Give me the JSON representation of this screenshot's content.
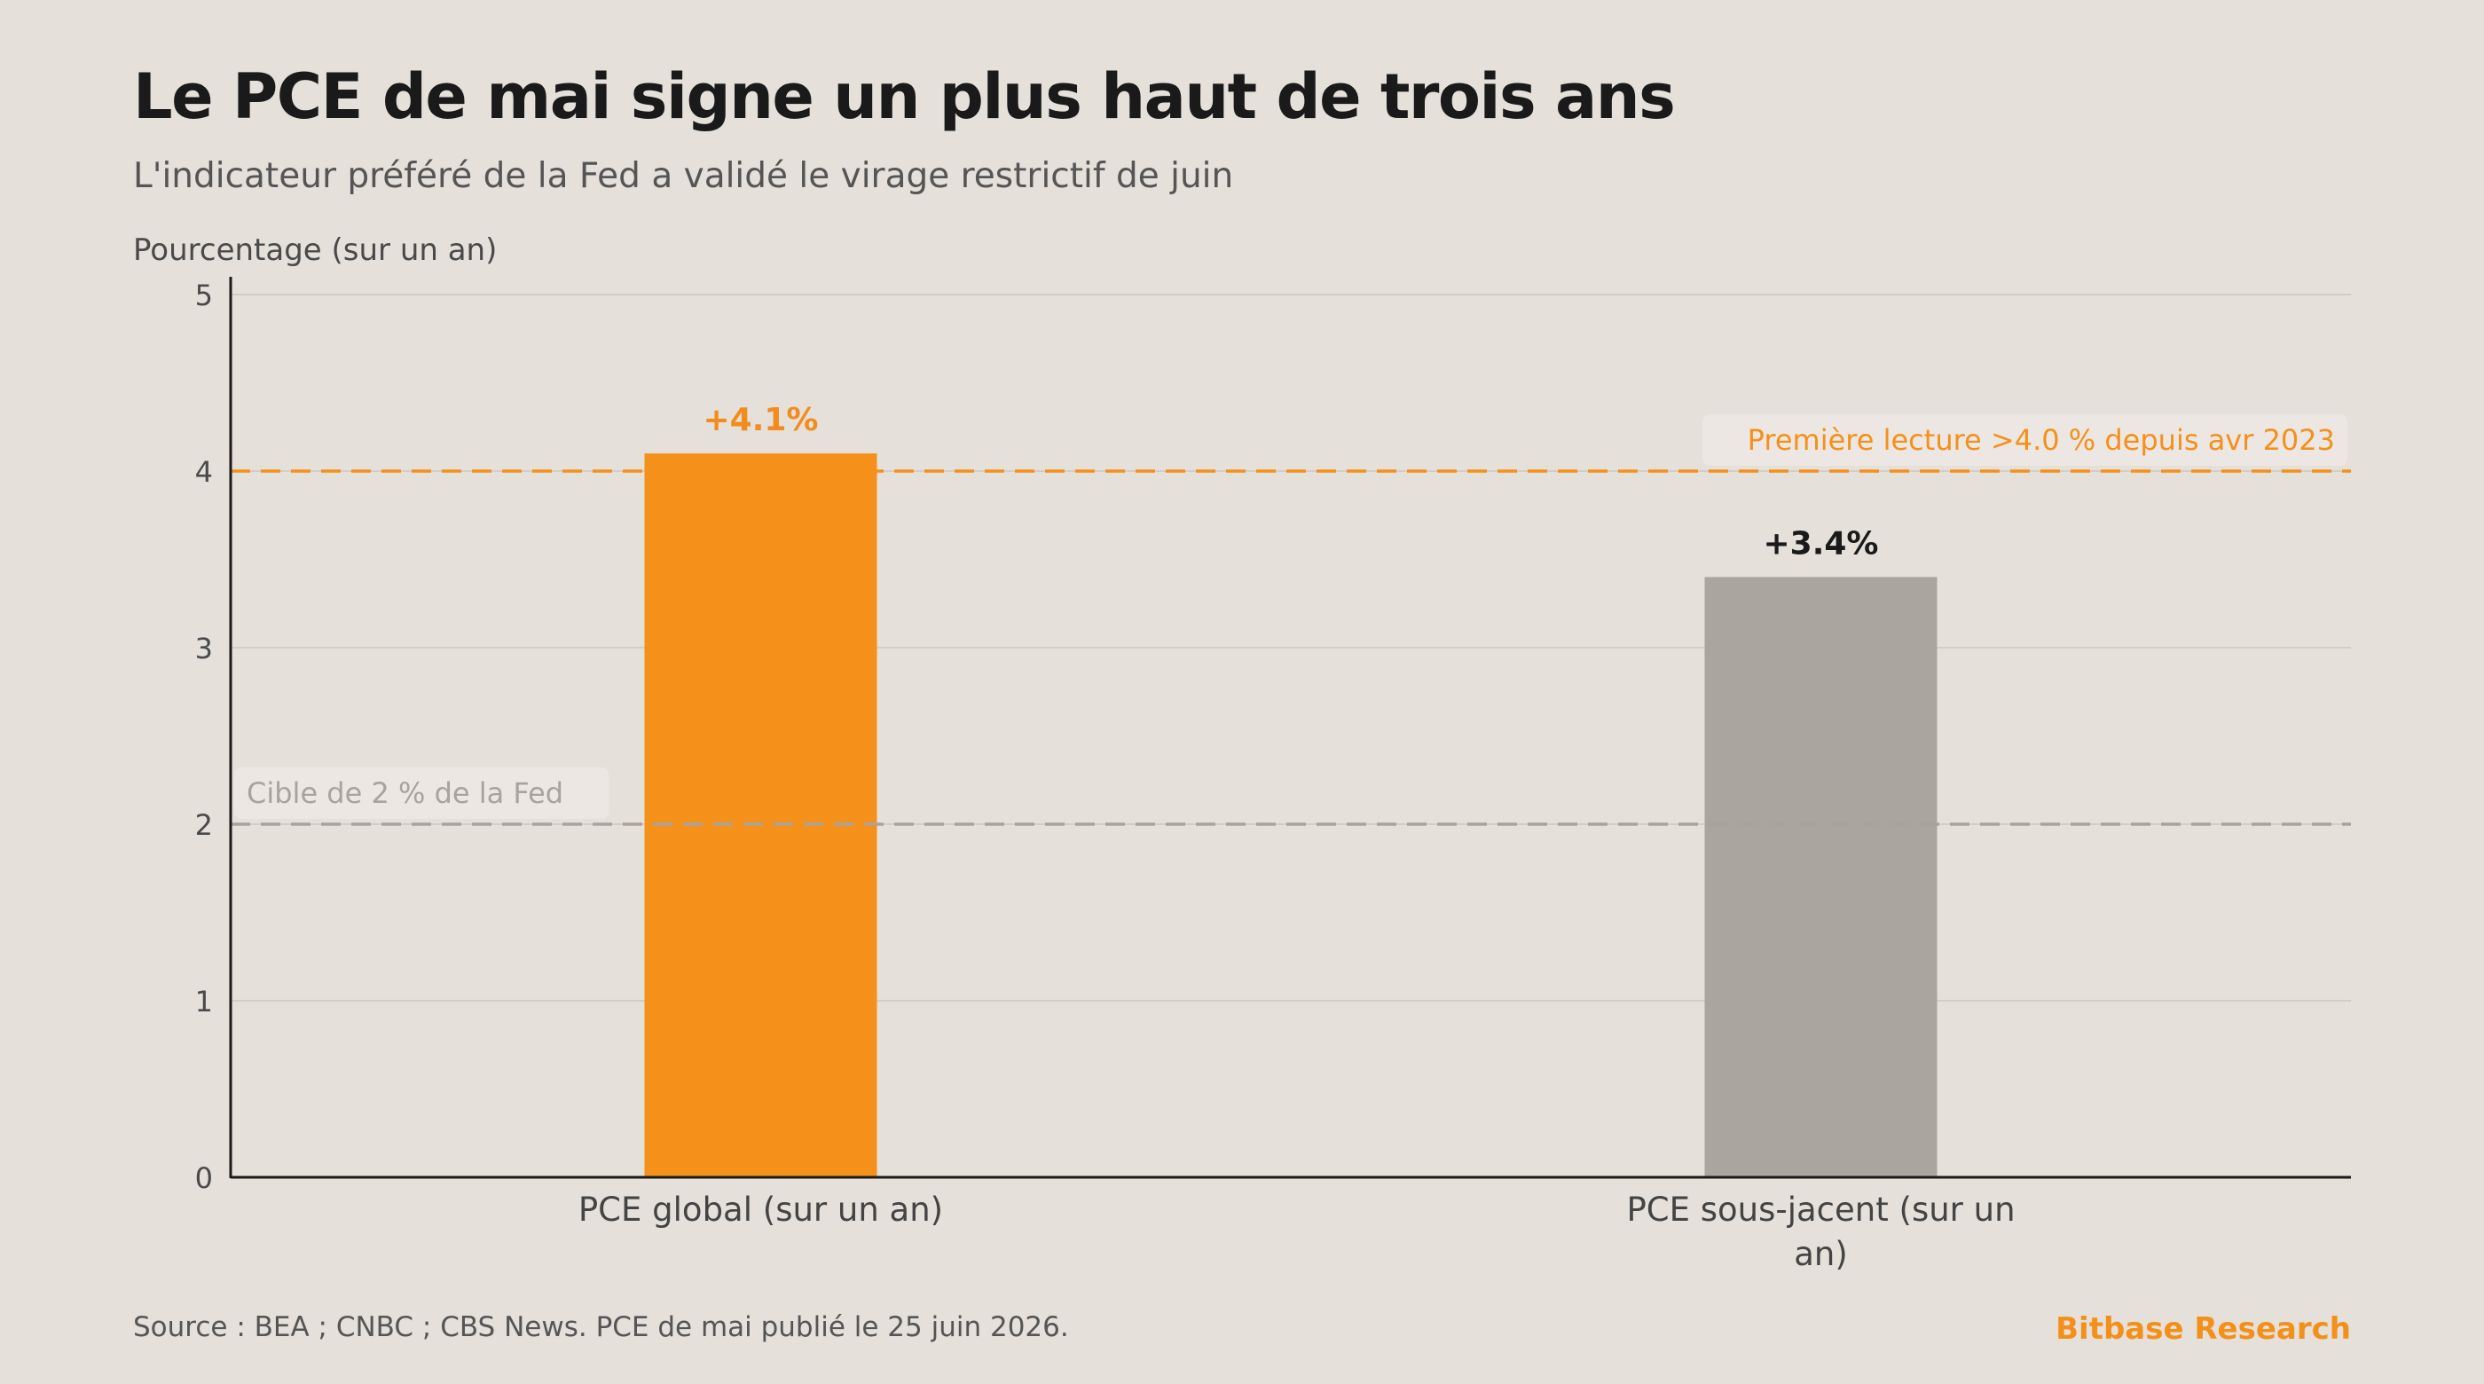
{
  "header": {
    "title": "Le PCE de mai signe un plus haut de trois ans",
    "subtitle": "L'indicateur préféré de la Fed a validé le virage restrictif de juin"
  },
  "footer": {
    "source": "Source : BEA ; CNBC ; CBS News. PCE de mai publié le 25 juin 2026.",
    "brand": "Bitbase Research"
  },
  "chart_data": {
    "type": "bar",
    "title": "Le PCE de mai signe un plus haut de trois ans",
    "subtitle": "L'indicateur préféré de la Fed a validé le virage restrictif de juin",
    "ylabel": "Pourcentage (sur un an)",
    "xlabel": "",
    "ylim": [
      0,
      5
    ],
    "yticks": [
      0,
      1,
      2,
      3,
      4,
      5
    ],
    "grid": true,
    "categories": [
      [
        "PCE global (sur un an)"
      ],
      [
        "PCE sous-jacent (sur un",
        "an)"
      ]
    ],
    "values": [
      4.1,
      3.4
    ],
    "data_labels": [
      "+4.1%",
      "+3.4%"
    ],
    "bar_colors": [
      "#f5901a",
      "#aaa59f"
    ],
    "label_colors": [
      "#f28c1c",
      "#1a1a1a"
    ],
    "reference_lines": [
      {
        "value": 4.0,
        "label": "Première lecture >4.0 % depuis avr 2023",
        "color": "#f5901a",
        "label_position": "right"
      },
      {
        "value": 2.0,
        "label": "Cible de 2 % de la Fed",
        "color": "#a8a39d",
        "label_position": "left"
      }
    ]
  }
}
